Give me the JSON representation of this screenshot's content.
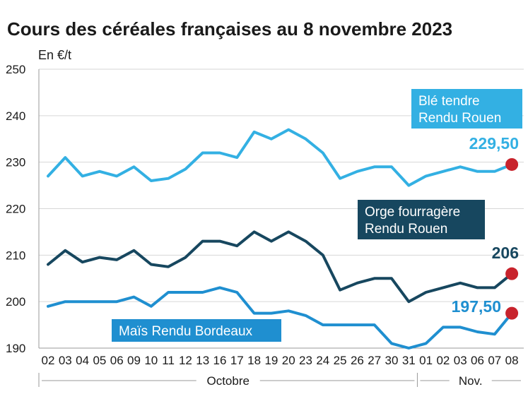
{
  "chart_data": {
    "type": "line",
    "title": "Cours des céréales françaises au 8 novembre 2023",
    "ylabel": "En €/t",
    "ylim": [
      190,
      250
    ],
    "yticks": [
      190,
      200,
      210,
      220,
      230,
      240,
      250
    ],
    "grid": true,
    "categories": [
      "02",
      "03",
      "04",
      "05",
      "06",
      "09",
      "10",
      "11",
      "12",
      "13",
      "16",
      "17",
      "18",
      "19",
      "20",
      "23",
      "24",
      "25",
      "26",
      "27",
      "30",
      "31",
      "01",
      "02",
      "03",
      "06",
      "07",
      "08"
    ],
    "month_labels": [
      {
        "label": "Octobre",
        "from": 0,
        "to": 21
      },
      {
        "label": "Nov.",
        "from": 22,
        "to": 27
      }
    ],
    "series": [
      {
        "name": "Blé tendre Rendu Rouen",
        "color": "#33b0e3",
        "label_lines": [
          "Blé tendre",
          "Rendu Rouen"
        ],
        "end_label": "229,50",
        "values": [
          227,
          231,
          227,
          228,
          227,
          229,
          226,
          226.5,
          228.5,
          232,
          232,
          231,
          236.5,
          235,
          237,
          235,
          232,
          226.5,
          228,
          229,
          229,
          225,
          227,
          228,
          229,
          228,
          228,
          229.5
        ]
      },
      {
        "name": "Orge fourragère Rendu Rouen",
        "color": "#17475f",
        "label_lines": [
          "Orge fourragère",
          "Rendu Rouen"
        ],
        "end_label": "206",
        "values": [
          208,
          211,
          208.5,
          209.5,
          209,
          211,
          208,
          207.5,
          209.5,
          213,
          213,
          212,
          215,
          213,
          215,
          213,
          210,
          202.5,
          204,
          205,
          205,
          200,
          202,
          203,
          204,
          203,
          203,
          206
        ]
      },
      {
        "name": "Maïs Rendu Bordeaux",
        "color": "#1f8fd0",
        "label_lines": [
          "Maïs Rendu Bordeaux"
        ],
        "end_label": "197,50",
        "values": [
          199,
          200,
          200,
          200,
          200,
          201,
          199,
          202,
          202,
          202,
          203,
          202,
          197.5,
          197.5,
          198,
          197,
          195,
          195,
          195,
          195,
          191,
          190,
          191,
          194.5,
          194.5,
          193.5,
          193,
          197.5
        ]
      }
    ],
    "end_marker_color": "#c8232c"
  }
}
